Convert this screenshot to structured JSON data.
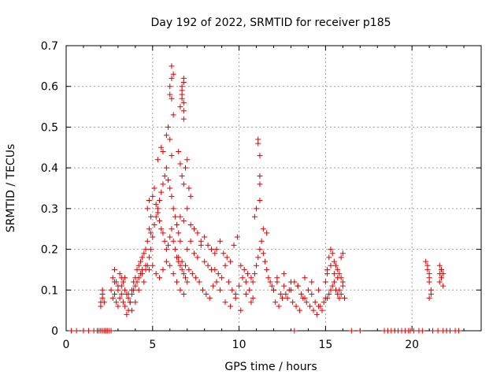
{
  "chart_data": {
    "type": "scatter",
    "title": "Day 192 of 2022, SRMTID for receiver p185",
    "xlabel": "GPS time / hours",
    "ylabel": "SRMTID / TECUs",
    "xlim": [
      0,
      24
    ],
    "ylim": [
      0,
      0.7
    ],
    "xticks": [
      0,
      5,
      10,
      15,
      20
    ],
    "yticks": [
      0,
      0.1,
      0.2,
      0.3,
      0.4,
      0.5,
      0.6,
      0.7
    ],
    "xtick_labels": [
      "0",
      "5",
      "10",
      "15",
      "20"
    ],
    "ytick_labels": [
      "0",
      "0.1",
      "0.2",
      "0.3",
      "0.4",
      "0.5",
      "0.6",
      "0.7"
    ],
    "grid": true,
    "marker": "+",
    "color": "#e00000",
    "series": [
      {
        "name": "SRMTID",
        "x": [
          0.3,
          0.6,
          1.0,
          1.3,
          1.6,
          1.8,
          1.9,
          2.0,
          2.1,
          2.2,
          2.3,
          2.4,
          2.5,
          2.6,
          13.2,
          16.5,
          17.0,
          18.4,
          18.6,
          18.8,
          19.0,
          19.2,
          19.4,
          19.6,
          19.8,
          19.9,
          20.1,
          20.4,
          20.6,
          21.2,
          21.5,
          21.8,
          22.0,
          22.2,
          22.5,
          22.7,
          2.0,
          2.0,
          2.1,
          2.1,
          2.1,
          2.2,
          2.6,
          2.7,
          2.8,
          2.9,
          3.0,
          3.1,
          3.2,
          3.3,
          3.4,
          3.5,
          3.6,
          3.7,
          3.8,
          3.9,
          4.0,
          4.1,
          4.2,
          4.3,
          4.4,
          4.5,
          4.6,
          4.7,
          4.8,
          4.9,
          2.7,
          2.8,
          2.9,
          3.0,
          3.1,
          3.2,
          3.3,
          3.4,
          3.5,
          3.6,
          3.7,
          3.8,
          3.9,
          4.0,
          4.1,
          4.2,
          4.3,
          4.4,
          4.5,
          2.8,
          3.0,
          3.2,
          3.4,
          3.6,
          3.8,
          4.0,
          4.2,
          4.4,
          4.6,
          4.6,
          4.7,
          4.8,
          4.9,
          5.0,
          5.1,
          5.2,
          5.3,
          5.4,
          5.5,
          5.6,
          5.7,
          5.8,
          5.9,
          6.0,
          6.1,
          6.2,
          6.3,
          6.4,
          6.5,
          6.6,
          6.7,
          6.8,
          6.9,
          7.0,
          4.7,
          4.8,
          4.9,
          5.0,
          5.1,
          5.2,
          5.3,
          5.4,
          5.5,
          5.6,
          5.7,
          5.8,
          5.9,
          6.0,
          6.1,
          6.2,
          6.3,
          6.4,
          6.5,
          6.6,
          4.8,
          5.0,
          5.2,
          5.4,
          5.6,
          5.8,
          6.0,
          6.2,
          6.4,
          6.6,
          6.8,
          5.3,
          5.5,
          5.6,
          5.8,
          5.9,
          6.0,
          6.1,
          6.0,
          6.0,
          6.1,
          6.1,
          6.1,
          6.2,
          6.2,
          6.6,
          6.7,
          6.7,
          6.8,
          6.8,
          6.8,
          6.7,
          6.8,
          6.7,
          6.8,
          6.5,
          6.6,
          6.7,
          6.8,
          6.9,
          7.0,
          7.1,
          7.2,
          6.6,
          6.8,
          7.0,
          7.2,
          7.4,
          7.6,
          7.8,
          8.0,
          8.2,
          8.4,
          8.6,
          6.5,
          6.7,
          6.9,
          7.1,
          7.3,
          7.5,
          7.7,
          7.9,
          8.1,
          8.3,
          8.5,
          8.7,
          8.9,
          7.0,
          7.2,
          7.4,
          7.6,
          7.8,
          8.0,
          8.2,
          8.4,
          8.6,
          8.8,
          9.0,
          9.2,
          9.4,
          9.6,
          9.8,
          10.0,
          10.2,
          10.4,
          10.6,
          10.8,
          8.7,
          8.9,
          9.1,
          9.3,
          9.5,
          9.7,
          9.9,
          10.1,
          10.3,
          10.5,
          10.7,
          9.2,
          9.5,
          9.8,
          10.1,
          10.4,
          10.7,
          10.8,
          10.9,
          11.0,
          11.1,
          11.2,
          11.3,
          11.4,
          11.5,
          11.6,
          11.7,
          11.8,
          11.9,
          12.0,
          10.9,
          11.0,
          11.2,
          11.4,
          11.6,
          11.1,
          11.1,
          11.2,
          11.2,
          11.2,
          12.0,
          12.2,
          12.4,
          12.6,
          12.8,
          13.0,
          13.2,
          13.4,
          13.6,
          13.8,
          14.0,
          14.2,
          14.4,
          14.6,
          14.8,
          15.0,
          12.1,
          12.3,
          12.5,
          12.7,
          12.9,
          13.1,
          13.3,
          13.5,
          13.7,
          13.9,
          14.1,
          14.3,
          14.5,
          14.7,
          14.9,
          12.2,
          12.6,
          13.0,
          13.4,
          13.8,
          14.2,
          14.6,
          15.0,
          15.1,
          15.2,
          15.3,
          15.4,
          15.5,
          15.6,
          15.7,
          15.8,
          15.9,
          16.0,
          15.1,
          15.2,
          15.3,
          15.4,
          15.5,
          15.6,
          15.7,
          15.8,
          15.1,
          15.3,
          15.5,
          15.7,
          15.8,
          15.9,
          16.0,
          16.1,
          15.9,
          16.0,
          20.8,
          20.9,
          21.0,
          21.0,
          21.1,
          20.9,
          21.0,
          21.1,
          21.0,
          21.6,
          21.7,
          21.8,
          21.7,
          21.6,
          21.8,
          21.7,
          21.6
        ],
        "y": [
          0,
          0,
          0,
          0,
          0,
          0,
          0,
          0,
          0,
          0,
          0,
          0,
          0,
          0,
          0,
          0,
          0,
          0,
          0,
          0,
          0,
          0,
          0,
          0,
          0,
          0,
          0,
          0,
          0,
          0,
          0,
          0,
          0,
          0,
          0,
          0,
          0.07,
          0.06,
          0.09,
          0.08,
          0.1,
          0.07,
          0.1,
          0.13,
          0.15,
          0.12,
          0.11,
          0.14,
          0.13,
          0.12,
          0.1,
          0.09,
          0.08,
          0.07,
          0.1,
          0.12,
          0.13,
          0.15,
          0.16,
          0.17,
          0.18,
          0.19,
          0.15,
          0.16,
          0.18,
          0.2,
          0.08,
          0.09,
          0.07,
          0.06,
          0.08,
          0.09,
          0.07,
          0.06,
          0.04,
          0.05,
          0.07,
          0.09,
          0.1,
          0.11,
          0.12,
          0.13,
          0.14,
          0.15,
          0.12,
          0.12,
          0.1,
          0.11,
          0.13,
          0.09,
          0.05,
          0.07,
          0.1,
          0.14,
          0.16,
          0.2,
          0.22,
          0.25,
          0.24,
          0.23,
          0.26,
          0.28,
          0.3,
          0.27,
          0.25,
          0.24,
          0.22,
          0.2,
          0.21,
          0.23,
          0.25,
          0.22,
          0.2,
          0.18,
          0.17,
          0.16,
          0.15,
          0.14,
          0.13,
          0.12,
          0.3,
          0.32,
          0.28,
          0.33,
          0.35,
          0.31,
          0.29,
          0.32,
          0.34,
          0.36,
          0.38,
          0.4,
          0.37,
          0.35,
          0.33,
          0.3,
          0.28,
          0.26,
          0.24,
          0.22,
          0.15,
          0.16,
          0.14,
          0.13,
          0.15,
          0.17,
          0.16,
          0.14,
          0.12,
          0.1,
          0.09,
          0.42,
          0.45,
          0.44,
          0.48,
          0.5,
          0.47,
          0.43,
          0.58,
          0.6,
          0.62,
          0.65,
          0.57,
          0.53,
          0.63,
          0.55,
          0.57,
          0.59,
          0.61,
          0.56,
          0.54,
          0.6,
          0.62,
          0.58,
          0.52,
          0.44,
          0.41,
          0.38,
          0.36,
          0.4,
          0.42,
          0.35,
          0.33,
          0.28,
          0.27,
          0.3,
          0.26,
          0.25,
          0.24,
          0.22,
          0.23,
          0.21,
          0.2,
          0.19,
          0.18,
          0.17,
          0.16,
          0.15,
          0.14,
          0.13,
          0.12,
          0.1,
          0.09,
          0.08,
          0.11,
          0.12,
          0.1,
          0.2,
          0.22,
          0.19,
          0.18,
          0.21,
          0.17,
          0.16,
          0.15,
          0.15,
          0.14,
          0.13,
          0.16,
          0.12,
          0.1,
          0.09,
          0.11,
          0.13,
          0.12,
          0.1,
          0.08,
          0.2,
          0.22,
          0.19,
          0.18,
          0.17,
          0.21,
          0.23,
          0.16,
          0.15,
          0.14,
          0.13,
          0.07,
          0.06,
          0.08,
          0.05,
          0.09,
          0.07,
          0.12,
          0.14,
          0.16,
          0.18,
          0.2,
          0.22,
          0.19,
          0.17,
          0.15,
          0.13,
          0.12,
          0.11,
          0.1,
          0.28,
          0.3,
          0.32,
          0.25,
          0.24,
          0.47,
          0.46,
          0.43,
          0.38,
          0.36,
          0.1,
          0.12,
          0.09,
          0.11,
          0.08,
          0.1,
          0.12,
          0.11,
          0.09,
          0.08,
          0.1,
          0.09,
          0.07,
          0.06,
          0.05,
          0.08,
          0.07,
          0.06,
          0.08,
          0.09,
          0.1,
          0.07,
          0.06,
          0.05,
          0.08,
          0.07,
          0.06,
          0.05,
          0.04,
          0.06,
          0.07,
          0.13,
          0.14,
          0.12,
          0.11,
          0.13,
          0.12,
          0.1,
          0.12,
          0.14,
          0.18,
          0.2,
          0.19,
          0.17,
          0.16,
          0.15,
          0.14,
          0.13,
          0.12,
          0.08,
          0.09,
          0.1,
          0.11,
          0.12,
          0.1,
          0.09,
          0.08,
          0.15,
          0.16,
          0.14,
          0.13,
          0.1,
          0.09,
          0.11,
          0.08,
          0.18,
          0.19,
          0.17,
          0.15,
          0.14,
          0.12,
          0.1,
          0.16,
          0.13,
          0.09,
          0.08,
          0.16,
          0.15,
          0.14,
          0.13,
          0.12,
          0.11,
          0.15,
          0.14
        ]
      }
    ]
  }
}
